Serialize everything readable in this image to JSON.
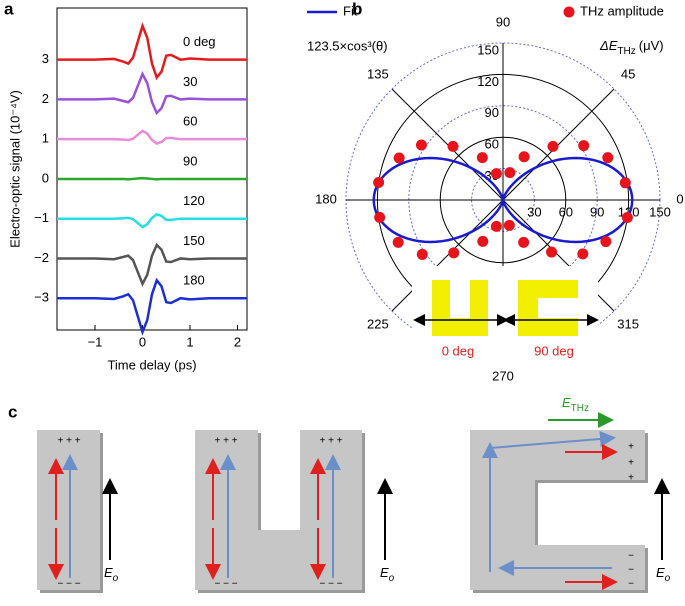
{
  "chart_data": [
    {
      "type": "line",
      "panel_label": "a",
      "xlabel": "Time delay (ps)",
      "ylabel": "Electro-optic signal (10⁻⁴V)",
      "xlim": [
        -1.8,
        2.2
      ],
      "xticks": [
        {
          "value": -1,
          "label": "−1"
        },
        0,
        1,
        2
      ],
      "ylim": [
        -3.8,
        4.3
      ],
      "yticks": [
        {
          "value": -3,
          "label": "−3"
        },
        {
          "value": -2,
          "label": "−2"
        },
        {
          "value": -1,
          "label": "−1"
        },
        0,
        1,
        2,
        3
      ],
      "x": [
        -1.8,
        -1.4,
        -1.0,
        -0.6,
        -0.4,
        -0.3,
        -0.2,
        -0.1,
        0,
        0.1,
        0.2,
        0.3,
        0.4,
        0.5,
        0.6,
        0.8,
        1.0,
        1.4,
        1.8,
        2.2
      ],
      "series": [
        {
          "name": "0 deg",
          "color": "#e41a1c",
          "values": [
            3,
            3,
            3,
            3.02,
            2.95,
            2.9,
            3.05,
            3.45,
            3.85,
            3.55,
            2.9,
            2.55,
            2.7,
            3.1,
            3.12,
            3,
            3.03,
            3,
            3,
            3
          ]
        },
        {
          "name": "30",
          "color": "#9a50d8",
          "values": [
            2,
            2,
            2,
            2.02,
            1.96,
            1.93,
            2.04,
            2.34,
            2.64,
            2.41,
            1.93,
            1.66,
            1.78,
            2.08,
            2.09,
            2,
            2.02,
            2,
            2,
            2
          ]
        },
        {
          "name": "60",
          "color": "#ea8ada",
          "values": [
            1,
            1,
            1,
            1,
            0.99,
            0.98,
            1.01,
            1.11,
            1.21,
            1.14,
            0.98,
            0.89,
            0.93,
            1.03,
            1.03,
            1,
            1,
            1,
            1,
            1
          ]
        },
        {
          "name": "90",
          "color": "#2aa82a",
          "values": [
            0,
            0,
            0,
            0,
            0,
            -0.01,
            0,
            0.01,
            0.02,
            0.01,
            0,
            -0.01,
            0,
            0,
            0,
            0,
            0,
            0,
            0,
            0
          ]
        },
        {
          "name": "120",
          "color": "#22e0e6",
          "values": [
            -1,
            -1,
            -1,
            -1,
            -0.99,
            -0.98,
            -1.01,
            -1.11,
            -1.21,
            -1.14,
            -0.98,
            -0.89,
            -0.93,
            -1.03,
            -1.03,
            -1,
            -1,
            -1,
            -1,
            -1
          ]
        },
        {
          "name": "150",
          "color": "#555555",
          "values": [
            -2,
            -2,
            -2,
            -2.02,
            -1.96,
            -1.93,
            -2.04,
            -2.34,
            -2.64,
            -2.41,
            -1.93,
            -1.66,
            -1.78,
            -2.08,
            -2.09,
            -2,
            -2.02,
            -2,
            -2,
            -2
          ]
        },
        {
          "name": "180",
          "color": "#1a2fd6",
          "values": [
            -3,
            -3,
            -3,
            -3.02,
            -2.95,
            -2.9,
            -3.05,
            -3.45,
            -3.85,
            -3.55,
            -2.9,
            -2.55,
            -2.7,
            -3.1,
            -3.12,
            -3,
            -3.03,
            -3,
            -3,
            -3
          ]
        }
      ]
    },
    {
      "type": "polar",
      "panel_label": "b",
      "fit": {
        "name": "Fit",
        "formula": "123.5×cos³(θ)",
        "amplitude": 123.5,
        "color": "#1a1ad0"
      },
      "series": [
        {
          "name": "THz amplitude",
          "color": "#e8141c",
          "theta": [
            8,
            22,
            34,
            47,
            64,
            76,
            352,
            338,
            326,
            313,
            296,
            284,
            172,
            158,
            146,
            133,
            116,
            104,
            188,
            202,
            214,
            227,
            244,
            256
          ],
          "r": [
            118,
            108,
            93,
            70,
            46,
            27,
            120,
            106,
            92,
            68,
            45,
            25,
            120,
            107,
            94,
            70,
            45,
            26,
            119,
            108,
            93,
            69,
            44,
            26
          ]
        }
      ],
      "r_label": {
        "base": "ΔE",
        "sub": "THz",
        "unit": "(μV)"
      },
      "rlim": [
        0,
        150
      ],
      "rticks": [
        30,
        60,
        90,
        120,
        150
      ],
      "thetaticks": [
        0,
        45,
        90,
        135,
        180,
        225,
        270,
        315
      ],
      "annotations": [
        "0 deg",
        "90 deg"
      ]
    }
  ],
  "diagram": {
    "panel_label": "c",
    "charges_plus": "+ + +",
    "charges_minus": "− − −",
    "charge_plus": "+",
    "charge_minus": "−",
    "e_o": {
      "base": "E",
      "sub": "o"
    },
    "e_thz": {
      "base": "E",
      "sub": "THz"
    }
  }
}
